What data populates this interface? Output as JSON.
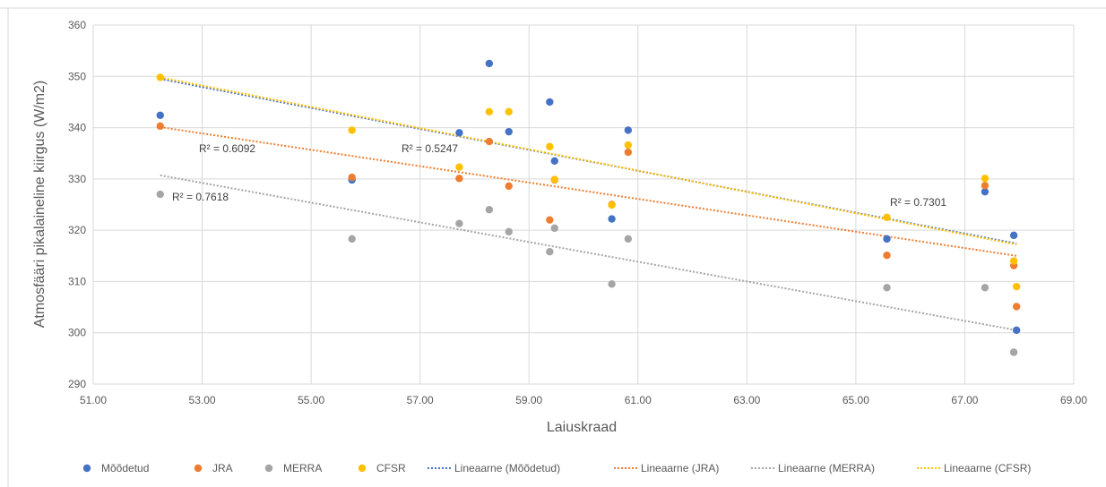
{
  "chart_data": {
    "type": "scatter",
    "title": "",
    "xlabel": "Laiuskraad",
    "ylabel": "Atmosfääri pikalaineline kiirgus (W/m2)",
    "xlim": [
      51,
      69
    ],
    "ylim": [
      290,
      360
    ],
    "x_ticks": [
      "51.00",
      "53.00",
      "55.00",
      "57.00",
      "59.00",
      "61.00",
      "63.00",
      "65.00",
      "67.00",
      "69.00"
    ],
    "y_ticks": [
      "290",
      "300",
      "310",
      "320",
      "330",
      "340",
      "350",
      "360"
    ],
    "grid": true,
    "legend_position": "bottom",
    "series": [
      {
        "name": "Mõõdetud",
        "color": "#4472c4",
        "points": [
          [
            52.23,
            342.4
          ],
          [
            55.75,
            329.8
          ],
          [
            57.72,
            339.0
          ],
          [
            58.27,
            352.5
          ],
          [
            58.63,
            339.2
          ],
          [
            59.38,
            345.0
          ],
          [
            59.47,
            333.5
          ],
          [
            60.52,
            322.2
          ],
          [
            60.82,
            339.5
          ],
          [
            65.57,
            318.3
          ],
          [
            67.37,
            327.5
          ],
          [
            67.9,
            319.0
          ],
          [
            67.95,
            300.5
          ]
        ],
        "trend": {
          "name": "Lineaarne (Mõõdetud)",
          "from": [
            52.23,
            349.5
          ],
          "to": [
            67.95,
            317.4
          ],
          "r2": "R² = 0.7301"
        }
      },
      {
        "name": "JRA",
        "color": "#ed7d31",
        "points": [
          [
            52.23,
            340.3
          ],
          [
            55.75,
            330.3
          ],
          [
            57.72,
            330.1
          ],
          [
            58.27,
            337.3
          ],
          [
            58.63,
            328.6
          ],
          [
            59.38,
            322.0
          ],
          [
            59.47,
            329.8
          ],
          [
            60.52,
            325.0
          ],
          [
            60.82,
            335.2
          ],
          [
            65.57,
            315.1
          ],
          [
            67.37,
            328.7
          ],
          [
            67.9,
            313.1
          ],
          [
            67.95,
            305.1
          ]
        ],
        "trend": {
          "name": "Lineaarne (JRA)",
          "from": [
            52.23,
            340.1
          ],
          "to": [
            67.95,
            315.0
          ],
          "r2": "R² = 0.6092"
        }
      },
      {
        "name": "MERRA",
        "color": "#a5a5a5",
        "points": [
          [
            52.23,
            327.0
          ],
          [
            55.75,
            318.3
          ],
          [
            57.72,
            321.3
          ],
          [
            58.27,
            324.0
          ],
          [
            58.63,
            319.7
          ],
          [
            59.38,
            315.8
          ],
          [
            59.47,
            320.4
          ],
          [
            60.52,
            309.5
          ],
          [
            60.82,
            318.3
          ],
          [
            65.57,
            308.8
          ],
          [
            67.37,
            308.8
          ],
          [
            67.9,
            296.2
          ]
        ],
        "trend": {
          "name": "Lineaarne (MERRA)",
          "from": [
            52.23,
            330.7
          ],
          "to": [
            67.95,
            300.5
          ],
          "r2": "R² = 0.7618"
        }
      },
      {
        "name": "CFSR",
        "color": "#ffc000",
        "points": [
          [
            52.23,
            349.8
          ],
          [
            55.75,
            339.5
          ],
          [
            57.72,
            332.3
          ],
          [
            58.27,
            343.1
          ],
          [
            58.63,
            343.1
          ],
          [
            59.38,
            336.3
          ],
          [
            59.47,
            329.9
          ],
          [
            60.52,
            324.9
          ],
          [
            60.82,
            336.6
          ],
          [
            65.57,
            322.5
          ],
          [
            67.37,
            330.1
          ],
          [
            67.9,
            314.0
          ],
          [
            67.95,
            309.0
          ]
        ],
        "trend": {
          "name": "Lineaarne (CFSR)",
          "from": [
            52.23,
            349.8
          ],
          "to": [
            67.95,
            317.2
          ],
          "r2": "R² = 0.5247"
        }
      }
    ]
  }
}
